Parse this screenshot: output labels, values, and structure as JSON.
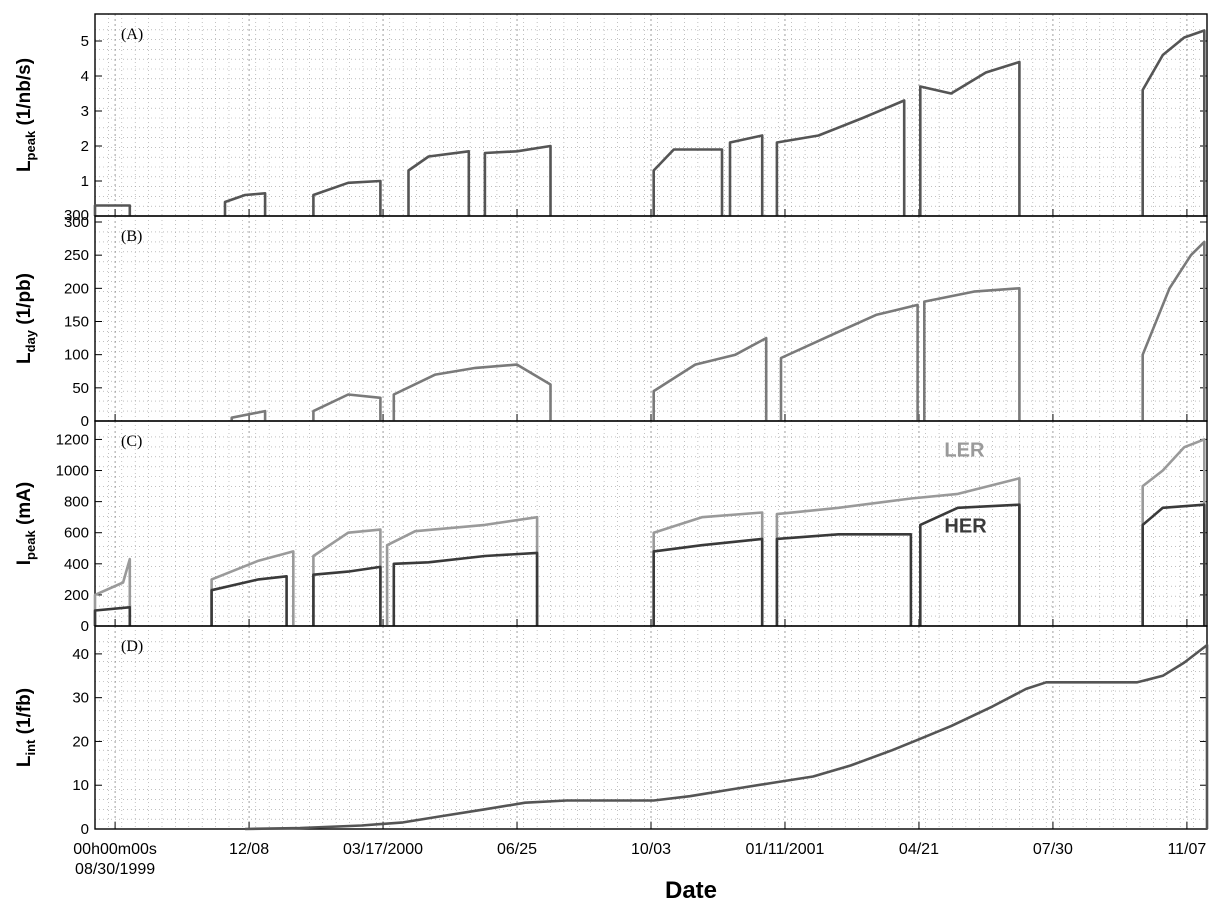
{
  "chart_data": {
    "type": "line",
    "xlabel": "Date",
    "x_range": [
      "1999-08-15",
      "2001-11-22"
    ],
    "x_ticks": [
      {
        "date": "1999-08-30",
        "lines": [
          "00h00m00s",
          "08/30/1999"
        ]
      },
      {
        "date": "1999-12-08",
        "lines": [
          "12/08"
        ]
      },
      {
        "date": "2000-03-17",
        "lines": [
          "03/17/2000"
        ]
      },
      {
        "date": "2000-06-25",
        "lines": [
          "06/25"
        ]
      },
      {
        "date": "2000-10-03",
        "lines": [
          "10/03"
        ]
      },
      {
        "date": "2001-01-11",
        "lines": [
          "01/11/2001"
        ]
      },
      {
        "date": "2001-04-21",
        "lines": [
          "04/21"
        ]
      },
      {
        "date": "2001-07-30",
        "lines": [
          "07/30"
        ]
      },
      {
        "date": "2001-11-07",
        "lines": [
          "11/07"
        ]
      }
    ],
    "grid": true,
    "panels": [
      {
        "id": "A",
        "panel_label": "(A)",
        "ylabel": {
          "main": "L",
          "sub": "peak",
          "unit": " (1/nb/s)"
        },
        "ylim": [
          0,
          5.6
        ],
        "yticks": [
          1,
          2,
          3,
          4,
          5
        ],
        "extra_tick_label": "300",
        "series": [
          {
            "color": "#555555",
            "segments": [
              [
                [
                  "1999-08-15",
                  0.3
                ],
                [
                  "1999-09-10",
                  0.3
                ]
              ],
              [
                [
                  "1999-11-20",
                  0.4
                ],
                [
                  "1999-12-05",
                  0.6
                ],
                [
                  "1999-12-20",
                  0.65
                ]
              ],
              [
                [
                  "2000-01-25",
                  0.6
                ],
                [
                  "2000-02-20",
                  0.95
                ],
                [
                  "2000-03-15",
                  1.0
                ]
              ],
              [
                [
                  "2000-04-05",
                  1.3
                ],
                [
                  "2000-04-20",
                  1.7
                ],
                [
                  "2000-05-20",
                  1.85
                ]
              ],
              [
                [
                  "2000-06-01",
                  1.8
                ],
                [
                  "2000-06-25",
                  1.85
                ],
                [
                  "2000-07-20",
                  2.0
                ]
              ],
              [
                [
                  "2000-10-05",
                  1.3
                ],
                [
                  "2000-10-20",
                  1.9
                ],
                [
                  "2000-11-25",
                  1.9
                ]
              ],
              [
                [
                  "2000-12-01",
                  2.1
                ],
                [
                  "2000-12-25",
                  2.3
                ]
              ],
              [
                [
                  "2001-01-05",
                  2.1
                ],
                [
                  "2001-02-05",
                  2.3
                ],
                [
                  "2001-03-10",
                  2.8
                ],
                [
                  "2001-04-10",
                  3.3
                ]
              ],
              [
                [
                  "2001-04-22",
                  3.7
                ],
                [
                  "2001-05-15",
                  3.5
                ],
                [
                  "2001-06-10",
                  4.1
                ],
                [
                  "2001-07-05",
                  4.4
                ]
              ],
              [
                [
                  "2001-10-05",
                  3.6
                ],
                [
                  "2001-10-20",
                  4.6
                ],
                [
                  "2001-11-05",
                  5.1
                ],
                [
                  "2001-11-20",
                  5.3
                ]
              ]
            ]
          }
        ]
      },
      {
        "id": "B",
        "panel_label": "(B)",
        "ylabel": {
          "main": "L",
          "sub": "day",
          "unit": " (1/pb)"
        },
        "ylim": [
          0,
          300
        ],
        "yticks": [
          0,
          50,
          100,
          150,
          200,
          250,
          300
        ],
        "series": [
          {
            "color": "#7a7a7a",
            "segments": [
              [
                [
                  "1999-11-25",
                  5
                ],
                [
                  "1999-12-20",
                  15
                ]
              ],
              [
                [
                  "2000-01-25",
                  15
                ],
                [
                  "2000-02-20",
                  40
                ],
                [
                  "2000-03-15",
                  35
                ]
              ],
              [
                [
                  "2000-03-25",
                  40
                ],
                [
                  "2000-04-25",
                  70
                ],
                [
                  "2000-05-25",
                  80
                ],
                [
                  "2000-06-25",
                  85
                ],
                [
                  "2000-07-20",
                  55
                ]
              ],
              [
                [
                  "2000-10-05",
                  45
                ],
                [
                  "2000-11-05",
                  85
                ],
                [
                  "2000-12-05",
                  100
                ],
                [
                  "2000-12-28",
                  125
                ]
              ],
              [
                [
                  "2001-01-08",
                  95
                ],
                [
                  "2001-02-15",
                  130
                ],
                [
                  "2001-03-20",
                  160
                ],
                [
                  "2001-04-20",
                  175
                ]
              ],
              [
                [
                  "2001-04-25",
                  180
                ],
                [
                  "2001-06-01",
                  195
                ],
                [
                  "2001-07-05",
                  200
                ]
              ],
              [
                [
                  "2001-10-05",
                  100
                ],
                [
                  "2001-10-25",
                  200
                ],
                [
                  "2001-11-10",
                  250
                ],
                [
                  "2001-11-20",
                  270
                ]
              ]
            ]
          }
        ]
      },
      {
        "id": "C",
        "panel_label": "(C)",
        "ylabel": {
          "main": "I",
          "sub": "peak",
          "unit": " (mA)"
        },
        "ylim": [
          0,
          1280
        ],
        "yticks": [
          0,
          200,
          400,
          600,
          800,
          1000,
          1200
        ],
        "series": [
          {
            "name": "LER",
            "color": "#9a9a9a",
            "segments": [
              [
                [
                  "1999-08-15",
                  200
                ],
                [
                  "1999-09-05",
                  280
                ],
                [
                  "1999-09-10",
                  430
                ]
              ],
              [
                [
                  "1999-11-10",
                  300
                ],
                [
                  "1999-12-15",
                  420
                ],
                [
                  "2000-01-10",
                  480
                ]
              ],
              [
                [
                  "2000-01-25",
                  450
                ],
                [
                  "2000-02-20",
                  600
                ],
                [
                  "2000-03-15",
                  620
                ]
              ],
              [
                [
                  "2000-03-20",
                  520
                ],
                [
                  "2000-04-10",
                  610
                ],
                [
                  "2000-06-01",
                  650
                ],
                [
                  "2000-07-10",
                  700
                ]
              ],
              [
                [
                  "2000-10-05",
                  600
                ],
                [
                  "2000-11-10",
                  700
                ],
                [
                  "2000-12-25",
                  730
                ]
              ],
              [
                [
                  "2001-01-05",
                  720
                ],
                [
                  "2001-02-20",
                  760
                ],
                [
                  "2001-04-15",
                  820
                ],
                [
                  "2001-05-20",
                  850
                ],
                [
                  "2001-07-05",
                  950
                ]
              ],
              [
                [
                  "2001-10-05",
                  900
                ],
                [
                  "2001-10-20",
                  1000
                ],
                [
                  "2001-11-05",
                  1150
                ],
                [
                  "2001-11-20",
                  1200
                ]
              ]
            ]
          },
          {
            "name": "HER",
            "color": "#3a3a3a",
            "segments": [
              [
                [
                  "1999-08-15",
                  100
                ],
                [
                  "1999-09-10",
                  120
                ]
              ],
              [
                [
                  "1999-11-10",
                  230
                ],
                [
                  "1999-12-15",
                  300
                ],
                [
                  "2000-01-05",
                  320
                ]
              ],
              [
                [
                  "2000-01-25",
                  330
                ],
                [
                  "2000-02-20",
                  350
                ],
                [
                  "2000-03-15",
                  380
                ]
              ],
              [
                [
                  "2000-03-25",
                  400
                ],
                [
                  "2000-04-20",
                  410
                ],
                [
                  "2000-06-01",
                  450
                ],
                [
                  "2000-07-10",
                  470
                ]
              ],
              [
                [
                  "2000-10-05",
                  480
                ],
                [
                  "2000-11-10",
                  520
                ],
                [
                  "2000-12-25",
                  560
                ]
              ],
              [
                [
                  "2001-01-05",
                  560
                ],
                [
                  "2001-02-20",
                  590
                ],
                [
                  "2001-04-15",
                  590
                ]
              ],
              [
                [
                  "2001-04-22",
                  650
                ],
                [
                  "2001-05-20",
                  760
                ],
                [
                  "2001-07-05",
                  780
                ]
              ],
              [
                [
                  "2001-10-05",
                  650
                ],
                [
                  "2001-10-20",
                  760
                ],
                [
                  "2001-11-20",
                  780
                ]
              ]
            ]
          }
        ]
      },
      {
        "id": "D",
        "panel_label": "(D)",
        "ylabel": {
          "main": "L",
          "sub": "int",
          "unit": " (1/fb)"
        },
        "ylim": [
          0,
          45
        ],
        "yticks": [
          0,
          10,
          20,
          30,
          40
        ],
        "series": [
          {
            "color": "#555555",
            "segments": [
              [
                [
                  "1999-12-05",
                  0
                ],
                [
                  "2000-01-15",
                  0.2
                ],
                [
                  "2000-03-01",
                  0.8
                ],
                [
                  "2000-04-01",
                  1.5
                ],
                [
                  "2000-05-01",
                  3
                ],
                [
                  "2000-06-01",
                  4.5
                ],
                [
                  "2000-07-01",
                  6
                ],
                [
                  "2000-08-01",
                  6.5
                ],
                [
                  "2000-10-05",
                  6.5
                ],
                [
                  "2000-11-01",
                  7.5
                ],
                [
                  "2000-12-01",
                  9
                ],
                [
                  "2001-01-01",
                  10.5
                ],
                [
                  "2001-02-01",
                  12
                ],
                [
                  "2001-03-01",
                  14.5
                ],
                [
                  "2001-04-01",
                  18
                ],
                [
                  "2001-04-21",
                  20.5
                ],
                [
                  "2001-05-15",
                  23.5
                ],
                [
                  "2001-06-15",
                  28
                ],
                [
                  "2001-07-10",
                  32
                ],
                [
                  "2001-07-25",
                  33.5
                ],
                [
                  "2001-10-01",
                  33.5
                ],
                [
                  "2001-10-20",
                  35
                ],
                [
                  "2001-11-05",
                  38
                ],
                [
                  "2001-11-22",
                  42
                ]
              ]
            ]
          }
        ]
      }
    ]
  }
}
